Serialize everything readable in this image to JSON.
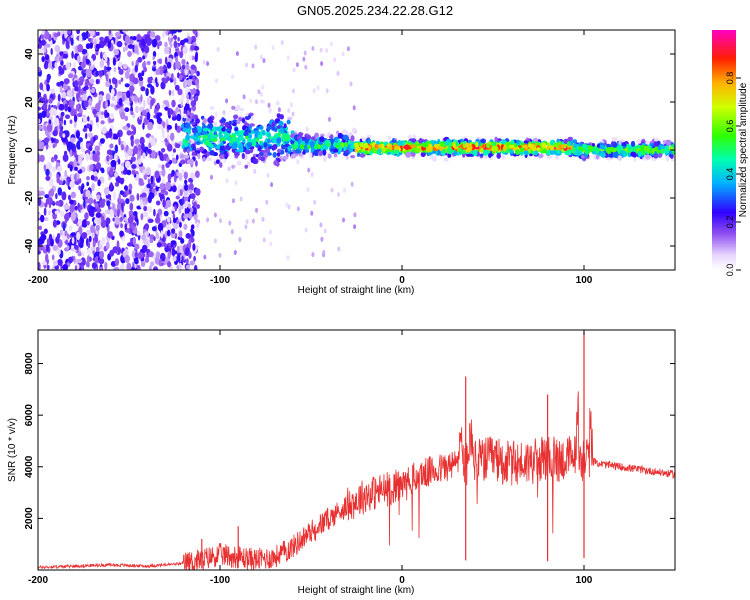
{
  "title": "GN05.2025.234.22.28.G12",
  "chart_data": [
    {
      "type": "heatmap",
      "xlabel": "Height of straight line (km)",
      "ylabel": "Frequency (Hz)",
      "xlim": [
        -200,
        150
      ],
      "ylim": [
        -50,
        50
      ],
      "xticks": [
        -200,
        -100,
        0,
        100
      ],
      "yticks": [
        -40,
        -20,
        0,
        20,
        40
      ],
      "colorbar": {
        "label": "Normalized spectral amplitude",
        "range": [
          0,
          1
        ],
        "ticks": [
          "0.0",
          "0.2",
          "0.4",
          "0.6",
          "0.8"
        ]
      },
      "regions": [
        {
          "x_range": [
            -200,
            -120
          ],
          "description_level": "noise",
          "amplitude_approx": 0.15,
          "freq_spread": [
            -50,
            50
          ]
        },
        {
          "x_range": [
            -120,
            -60
          ],
          "freq_center": 5,
          "freq_halfwidth": 10,
          "amplitude_approx": 0.45
        },
        {
          "x_range": [
            -60,
            -25
          ],
          "freq_center": 2,
          "freq_halfwidth": 4,
          "amplitude_approx": 0.5
        },
        {
          "x_range": [
            -25,
            95
          ],
          "freq_center": 1,
          "freq_halfwidth": 3,
          "amplitude_approx": 0.85
        },
        {
          "x_range": [
            95,
            150
          ],
          "freq_center": 0,
          "freq_halfwidth": 3,
          "amplitude_approx": 0.6
        }
      ]
    },
    {
      "type": "line",
      "xlabel": "Height of straight line (km)",
      "ylabel": "SNR (10 * v/v)",
      "xlim": [
        -200,
        150
      ],
      "ylim": [
        0,
        9300
      ],
      "xticks": [
        -200,
        -100,
        0,
        100
      ],
      "yticks": [
        2000,
        4000,
        6000,
        8000
      ],
      "color": "#e83030",
      "series": [
        {
          "x": [
            -200,
            -180,
            -160,
            -140,
            -120,
            -110,
            -100,
            -90,
            -80,
            -70,
            -60,
            -50,
            -40,
            -30,
            -20,
            -10,
            0,
            10,
            20,
            30,
            35,
            40,
            50,
            60,
            70,
            80,
            90,
            95,
            100,
            105,
            110,
            120,
            130,
            140,
            150
          ],
          "y": [
            100,
            150,
            200,
            150,
            250,
            400,
            600,
            500,
            400,
            500,
            900,
            1500,
            2000,
            2500,
            2900,
            3100,
            3300,
            3700,
            3900,
            4100,
            6500,
            4200,
            4300,
            4100,
            4200,
            4300,
            4300,
            4400,
            9200,
            4200,
            4100,
            4000,
            3900,
            3800,
            3700
          ]
        }
      ],
      "spikes": [
        {
          "x": -110,
          "y": 1200
        },
        {
          "x": -90,
          "y": 1700
        },
        {
          "x": 35,
          "y": 7500
        },
        {
          "x": 80,
          "y": 6800
        },
        {
          "x": 100,
          "y": 9200
        }
      ]
    }
  ]
}
